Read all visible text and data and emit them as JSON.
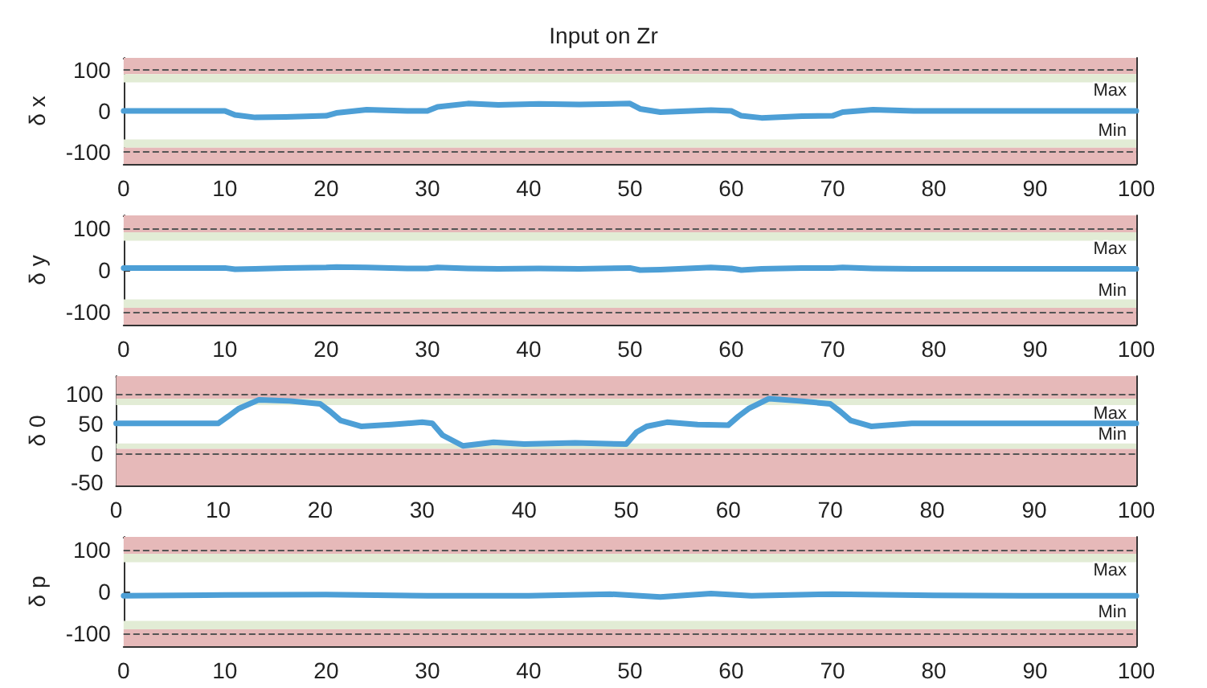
{
  "chart_data": [
    {
      "type": "line",
      "title": "Input on Zr",
      "ylabel": "δ x",
      "x": [
        0,
        10,
        11,
        13,
        16,
        20,
        21,
        24,
        28,
        30,
        31,
        34,
        37,
        41,
        45,
        50,
        51,
        53,
        58,
        60,
        61,
        63,
        67,
        70,
        71,
        74,
        78,
        100
      ],
      "series": [
        {
          "color": "#4d9fd6",
          "values": [
            0,
            0,
            -10,
            -16,
            -15,
            -12,
            -5,
            3,
            0,
            0,
            10,
            18,
            15,
            17,
            16,
            18,
            5,
            -3,
            2,
            0,
            -12,
            -17,
            -13,
            -12,
            -3,
            3,
            0,
            0
          ]
        }
      ],
      "xlim": [
        0,
        100
      ],
      "xticks": [
        0,
        10,
        20,
        30,
        40,
        50,
        60,
        70,
        80,
        90,
        100
      ],
      "ylim": [
        -130,
        130
      ],
      "yticks": [
        -100,
        0,
        100
      ],
      "grid": false,
      "bands": [
        {
          "axis": "y",
          "from": 90,
          "to": 130,
          "color": "#e6b9b9"
        },
        {
          "axis": "y",
          "from": 70,
          "to": 90,
          "color": "#e2ecd5",
          "label": "Max"
        },
        {
          "axis": "y",
          "from": -90,
          "to": -70,
          "color": "#e2ecd5",
          "label": "Min"
        },
        {
          "axis": "y",
          "from": -130,
          "to": -90,
          "color": "#e6b9b9"
        }
      ],
      "ref_lines": [
        {
          "axis": "y",
          "value": 100,
          "line_style": "dashed",
          "color": "#555555"
        },
        {
          "axis": "y",
          "value": -100,
          "line_style": "dashed",
          "color": "#555555"
        }
      ]
    },
    {
      "type": "line",
      "ylabel": "δ y",
      "x": [
        0,
        10,
        11,
        13,
        16,
        20,
        21,
        24,
        28,
        30,
        31,
        34,
        37,
        41,
        45,
        50,
        51,
        53,
        58,
        60,
        61,
        63,
        67,
        70,
        71,
        74,
        78,
        100
      ],
      "series": [
        {
          "color": "#4d9fd6",
          "values": [
            5,
            5,
            2,
            3,
            5,
            6,
            7,
            6,
            4,
            4,
            6,
            4,
            3,
            4,
            3,
            5,
            0,
            1,
            6,
            4,
            0,
            3,
            5,
            5,
            6,
            4,
            3,
            3
          ]
        }
      ],
      "xlim": [
        0,
        100
      ],
      "xticks": [
        0,
        10,
        20,
        30,
        40,
        50,
        60,
        70,
        80,
        90,
        100
      ],
      "ylim": [
        -130,
        130
      ],
      "yticks": [
        -100,
        0,
        100
      ],
      "grid": false,
      "bands": [
        {
          "axis": "y",
          "from": 90,
          "to": 130,
          "color": "#e6b9b9"
        },
        {
          "axis": "y",
          "from": 70,
          "to": 90,
          "color": "#e2ecd5",
          "label": "Max"
        },
        {
          "axis": "y",
          "from": -90,
          "to": -70,
          "color": "#e2ecd5",
          "label": "Min"
        },
        {
          "axis": "y",
          "from": -130,
          "to": -90,
          "color": "#e6b9b9"
        }
      ],
      "ref_lines": [
        {
          "axis": "y",
          "value": 100,
          "line_style": "dashed",
          "color": "#555555"
        },
        {
          "axis": "y",
          "value": -100,
          "line_style": "dashed",
          "color": "#555555"
        }
      ]
    },
    {
      "type": "line",
      "ylabel": "δ 0",
      "x": [
        0,
        10,
        11,
        12,
        14,
        17,
        20,
        21,
        22,
        24,
        27,
        30,
        31,
        32,
        34,
        37,
        40,
        45,
        50,
        51,
        52,
        54,
        57,
        60,
        61,
        62,
        64,
        67,
        70,
        71,
        72,
        74,
        78,
        100
      ],
      "series": [
        {
          "color": "#4d9fd6",
          "values": [
            50,
            50,
            62,
            75,
            90,
            88,
            83,
            70,
            55,
            45,
            48,
            52,
            50,
            30,
            12,
            18,
            15,
            17,
            15,
            35,
            45,
            52,
            48,
            47,
            62,
            75,
            92,
            88,
            83,
            70,
            55,
            45,
            50,
            50
          ]
        }
      ],
      "xlim": [
        0,
        100
      ],
      "xticks": [
        0,
        10,
        20,
        30,
        40,
        50,
        60,
        70,
        80,
        90,
        100
      ],
      "ylim": [
        -55,
        130
      ],
      "yticks": [
        -50,
        0,
        50,
        100
      ],
      "grid": false,
      "bands": [
        {
          "axis": "y",
          "from": 92,
          "to": 130,
          "color": "#e6b9b9"
        },
        {
          "axis": "y",
          "from": 81,
          "to": 92,
          "color": "#e2ecd5",
          "label": "Max"
        },
        {
          "axis": "y",
          "from": 7,
          "to": 16,
          "color": "#e2ecd5",
          "label": "Min"
        },
        {
          "axis": "y",
          "from": -55,
          "to": 7,
          "color": "#e6b9b9"
        }
      ],
      "ref_lines": [
        {
          "axis": "y",
          "value": 100,
          "line_style": "dashed",
          "color": "#555555"
        },
        {
          "axis": "y",
          "value": 0,
          "line_style": "dashed",
          "color": "#555555"
        }
      ]
    },
    {
      "type": "line",
      "ylabel": "δ p",
      "x": [
        0,
        10,
        20,
        30,
        40,
        48,
        53,
        58,
        62,
        70,
        80,
        90,
        100
      ],
      "series": [
        {
          "color": "#4d9fd6",
          "values": [
            -10,
            -8,
            -7,
            -10,
            -10,
            -6,
            -13,
            -5,
            -10,
            -6,
            -9,
            -10,
            -10
          ]
        }
      ],
      "xlim": [
        0,
        100
      ],
      "xticks": [
        0,
        10,
        20,
        30,
        40,
        50,
        60,
        70,
        80,
        90,
        100
      ],
      "ylim": [
        -130,
        130
      ],
      "yticks": [
        -100,
        0,
        100
      ],
      "grid": false,
      "bands": [
        {
          "axis": "y",
          "from": 90,
          "to": 130,
          "color": "#e6b9b9"
        },
        {
          "axis": "y",
          "from": 70,
          "to": 90,
          "color": "#e2ecd5",
          "label": "Max"
        },
        {
          "axis": "y",
          "from": -90,
          "to": -70,
          "color": "#e2ecd5",
          "label": "Min"
        },
        {
          "axis": "y",
          "from": -130,
          "to": -90,
          "color": "#e6b9b9"
        }
      ],
      "ref_lines": [
        {
          "axis": "y",
          "value": 100,
          "line_style": "dashed",
          "color": "#555555"
        },
        {
          "axis": "y",
          "value": -100,
          "line_style": "dashed",
          "color": "#555555"
        }
      ]
    }
  ]
}
